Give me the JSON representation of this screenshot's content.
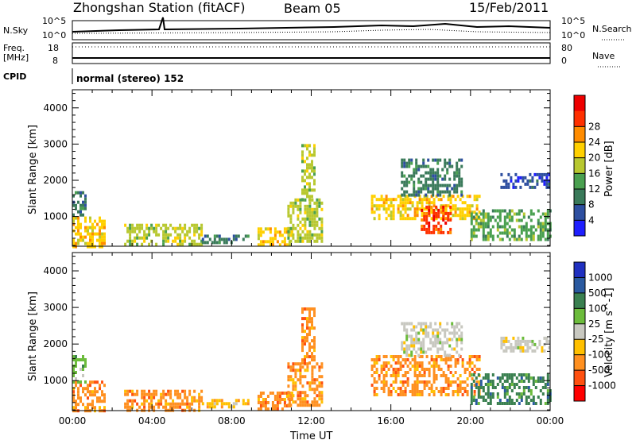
{
  "header": {
    "station": "Zhongshan Station (fitACF)",
    "beam": "Beam 05",
    "date": "15/Feb/2011"
  },
  "strips": {
    "nsky_label": "N.Sky",
    "nsearch_label": "N.Search",
    "freq_label_1": "Freq.",
    "freq_label_2": "[MHz]",
    "nave_label": "Nave",
    "cpid_label": "CPID",
    "nsky_ticks": [
      "10^5",
      "10^0"
    ],
    "nsearch_ticks": [
      "10^5",
      "10^0"
    ],
    "freq_ticks": [
      "18",
      "8"
    ],
    "nave_ticks": [
      "80",
      "0"
    ],
    "cpid_text": "normal (stereo) 152"
  },
  "colors": {
    "frame": "#000000",
    "power_scale": [
      "#1f1fff",
      "#2e4fa0",
      "#3a7a5a",
      "#4aa050",
      "#b8c830",
      "#ffd000",
      "#ff8c00",
      "#ff3000",
      "#ee0000"
    ],
    "velocity_scale": [
      "#2030c0",
      "#2a5aa0",
      "#3a8050",
      "#6cbc3c",
      "#c8c8c0",
      "#ffc000",
      "#ff9020",
      "#ff5010",
      "#ff0000"
    ]
  },
  "chart_data": [
    {
      "type": "heatmap",
      "panel": "power",
      "ylabel": "Slant Range [km]",
      "xlabel": "",
      "ylim": [
        180,
        4500
      ],
      "yticks": [
        1000,
        2000,
        3000,
        4000
      ],
      "xticks": [
        "00:00",
        "04:00",
        "08:00",
        "12:00",
        "16:00",
        "20:00",
        "00:00"
      ],
      "colorbar_label": "Power [dB]",
      "colorbar_ticks": [
        4,
        8,
        12,
        16,
        20,
        24,
        28
      ],
      "regions": [
        {
          "t0": 0.0,
          "t1": 1.6,
          "r0": 180,
          "r1": 1000,
          "value": 20
        },
        {
          "t0": 0.0,
          "t1": 0.7,
          "r0": 1000,
          "r1": 1700,
          "value": 10
        },
        {
          "t0": 2.6,
          "t1": 6.5,
          "r0": 200,
          "r1": 800,
          "value": 18
        },
        {
          "t0": 6.5,
          "t1": 8.8,
          "r0": 250,
          "r1": 500,
          "value": 12
        },
        {
          "t0": 9.3,
          "t1": 11.0,
          "r0": 250,
          "r1": 700,
          "value": 20
        },
        {
          "t0": 10.8,
          "t1": 12.5,
          "r0": 300,
          "r1": 1500,
          "value": 16
        },
        {
          "t0": 11.5,
          "t1": 12.2,
          "r0": 1500,
          "r1": 3000,
          "value": 18
        },
        {
          "t0": 15.0,
          "t1": 20.5,
          "r0": 900,
          "r1": 1600,
          "value": 20
        },
        {
          "t0": 16.5,
          "t1": 19.5,
          "r0": 1600,
          "r1": 2600,
          "value": 12
        },
        {
          "t0": 17.5,
          "t1": 19.0,
          "r0": 550,
          "r1": 1300,
          "value": 28
        },
        {
          "t0": 20.0,
          "t1": 24.0,
          "r0": 350,
          "r1": 1200,
          "value": 14
        },
        {
          "t0": 21.5,
          "t1": 24.0,
          "r0": 1800,
          "r1": 2200,
          "value": 8
        }
      ]
    },
    {
      "type": "heatmap",
      "panel": "velocity",
      "ylabel": "Slant Range [km]",
      "xlabel": "Time UT",
      "ylim": [
        180,
        4500
      ],
      "yticks": [
        1000,
        2000,
        3000,
        4000
      ],
      "xticks": [
        "00:00",
        "04:00",
        "08:00",
        "12:00",
        "16:00",
        "20:00",
        "00:00"
      ],
      "colorbar_label": "Velocity [m s^-1]",
      "colorbar_ticks": [
        1000,
        500,
        100,
        25,
        -25,
        -100,
        -500,
        -1000
      ],
      "regions": [
        {
          "t0": 0.0,
          "t1": 1.6,
          "r0": 180,
          "r1": 1000,
          "value": -200
        },
        {
          "t0": 0.0,
          "t1": 0.7,
          "r0": 1000,
          "r1": 1700,
          "value": 80
        },
        {
          "t0": 2.6,
          "t1": 6.5,
          "r0": 200,
          "r1": 750,
          "value": -300
        },
        {
          "t0": 6.5,
          "t1": 8.8,
          "r0": 250,
          "r1": 500,
          "value": -100
        },
        {
          "t0": 9.3,
          "t1": 11.0,
          "r0": 250,
          "r1": 700,
          "value": -150
        },
        {
          "t0": 10.8,
          "t1": 12.5,
          "r0": 300,
          "r1": 1500,
          "value": -400
        },
        {
          "t0": 11.5,
          "t1": 12.2,
          "r0": 1500,
          "r1": 3000,
          "value": -250
        },
        {
          "t0": 15.0,
          "t1": 20.5,
          "r0": 600,
          "r1": 1700,
          "value": -300
        },
        {
          "t0": 16.5,
          "t1": 19.5,
          "r0": 1700,
          "r1": 2600,
          "value": 0
        },
        {
          "t0": 20.0,
          "t1": 24.0,
          "r0": 350,
          "r1": 1200,
          "value": 200
        },
        {
          "t0": 21.5,
          "t1": 24.0,
          "r0": 1800,
          "r1": 2200,
          "value": 0
        }
      ]
    }
  ]
}
